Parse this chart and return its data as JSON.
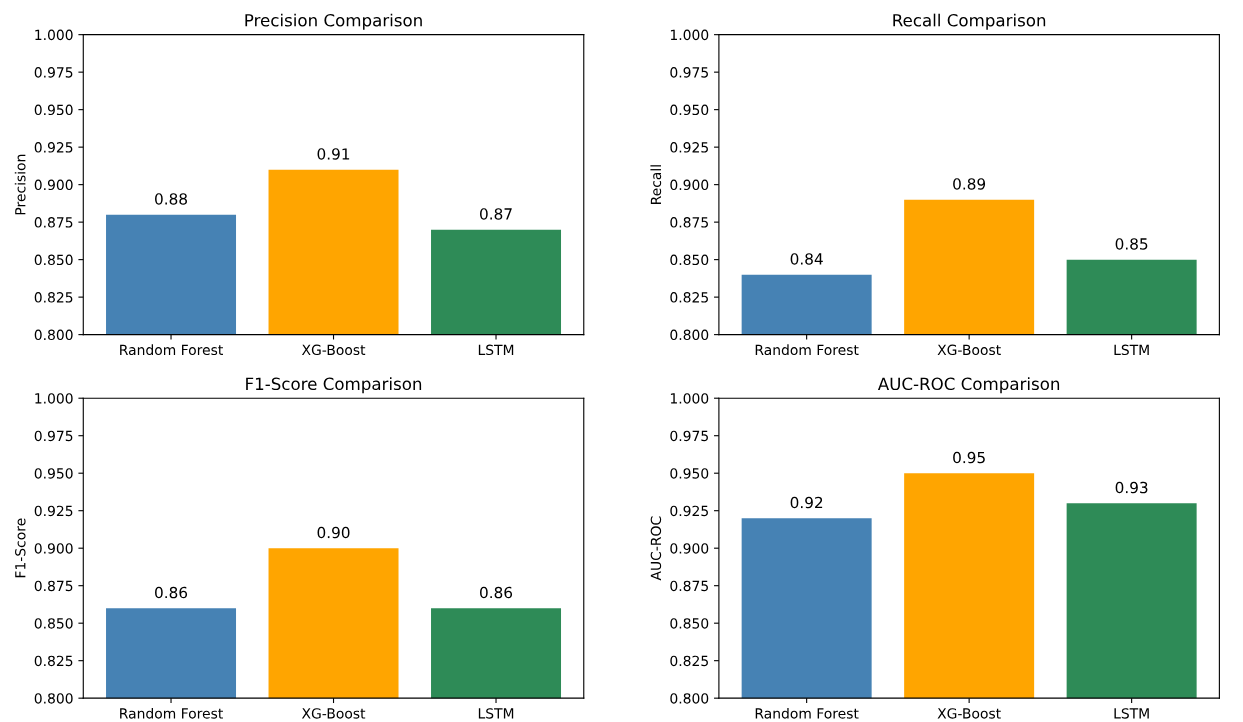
{
  "chart_data": [
    {
      "type": "bar",
      "title": "Precision Comparison",
      "ylabel": "Precision",
      "categories": [
        "Random Forest",
        "XG-Boost",
        "LSTM"
      ],
      "values": [
        0.88,
        0.91,
        0.87
      ],
      "value_labels": [
        "0.88",
        "0.91",
        "0.87"
      ],
      "colors": [
        "#4682b4",
        "#ffa500",
        "#2e8b57"
      ],
      "ylim": [
        0.8,
        1.0
      ],
      "yticks": [
        {
          "value": 0.8,
          "label": "0.800"
        },
        {
          "value": 0.825,
          "label": "0.825"
        },
        {
          "value": 0.85,
          "label": "0.850"
        },
        {
          "value": 0.875,
          "label": "0.875"
        },
        {
          "value": 0.9,
          "label": "0.900"
        },
        {
          "value": 0.925,
          "label": "0.925"
        },
        {
          "value": 0.95,
          "label": "0.950"
        },
        {
          "value": 0.975,
          "label": "0.975"
        },
        {
          "value": 1.0,
          "label": "1.000"
        }
      ]
    },
    {
      "type": "bar",
      "title": "Recall Comparison",
      "ylabel": "Recall",
      "categories": [
        "Random Forest",
        "XG-Boost",
        "LSTM"
      ],
      "values": [
        0.84,
        0.89,
        0.85
      ],
      "value_labels": [
        "0.84",
        "0.89",
        "0.85"
      ],
      "colors": [
        "#4682b4",
        "#ffa500",
        "#2e8b57"
      ],
      "ylim": [
        0.8,
        1.0
      ],
      "yticks": [
        {
          "value": 0.8,
          "label": "0.800"
        },
        {
          "value": 0.825,
          "label": "0.825"
        },
        {
          "value": 0.85,
          "label": "0.850"
        },
        {
          "value": 0.875,
          "label": "0.875"
        },
        {
          "value": 0.9,
          "label": "0.900"
        },
        {
          "value": 0.925,
          "label": "0.925"
        },
        {
          "value": 0.95,
          "label": "0.950"
        },
        {
          "value": 0.975,
          "label": "0.975"
        },
        {
          "value": 1.0,
          "label": "1.000"
        }
      ]
    },
    {
      "type": "bar",
      "title": "F1-Score Comparison",
      "ylabel": "F1-Score",
      "categories": [
        "Random Forest",
        "XG-Boost",
        "LSTM"
      ],
      "values": [
        0.86,
        0.9,
        0.86
      ],
      "value_labels": [
        "0.86",
        "0.90",
        "0.86"
      ],
      "colors": [
        "#4682b4",
        "#ffa500",
        "#2e8b57"
      ],
      "ylim": [
        0.8,
        1.0
      ],
      "yticks": [
        {
          "value": 0.8,
          "label": "0.800"
        },
        {
          "value": 0.825,
          "label": "0.825"
        },
        {
          "value": 0.85,
          "label": "0.850"
        },
        {
          "value": 0.875,
          "label": "0.875"
        },
        {
          "value": 0.9,
          "label": "0.900"
        },
        {
          "value": 0.925,
          "label": "0.925"
        },
        {
          "value": 0.95,
          "label": "0.950"
        },
        {
          "value": 0.975,
          "label": "0.975"
        },
        {
          "value": 1.0,
          "label": "1.000"
        }
      ]
    },
    {
      "type": "bar",
      "title": "AUC-ROC Comparison",
      "ylabel": "AUC-ROC",
      "categories": [
        "Random Forest",
        "XG-Boost",
        "LSTM"
      ],
      "values": [
        0.92,
        0.95,
        0.93
      ],
      "value_labels": [
        "0.92",
        "0.95",
        "0.93"
      ],
      "colors": [
        "#4682b4",
        "#ffa500",
        "#2e8b57"
      ],
      "ylim": [
        0.8,
        1.0
      ],
      "yticks": [
        {
          "value": 0.8,
          "label": "0.800"
        },
        {
          "value": 0.825,
          "label": "0.825"
        },
        {
          "value": 0.85,
          "label": "0.850"
        },
        {
          "value": 0.875,
          "label": "0.875"
        },
        {
          "value": 0.9,
          "label": "0.900"
        },
        {
          "value": 0.925,
          "label": "0.925"
        },
        {
          "value": 0.95,
          "label": "0.950"
        },
        {
          "value": 0.975,
          "label": "0.975"
        },
        {
          "value": 1.0,
          "label": "1.000"
        }
      ]
    }
  ]
}
